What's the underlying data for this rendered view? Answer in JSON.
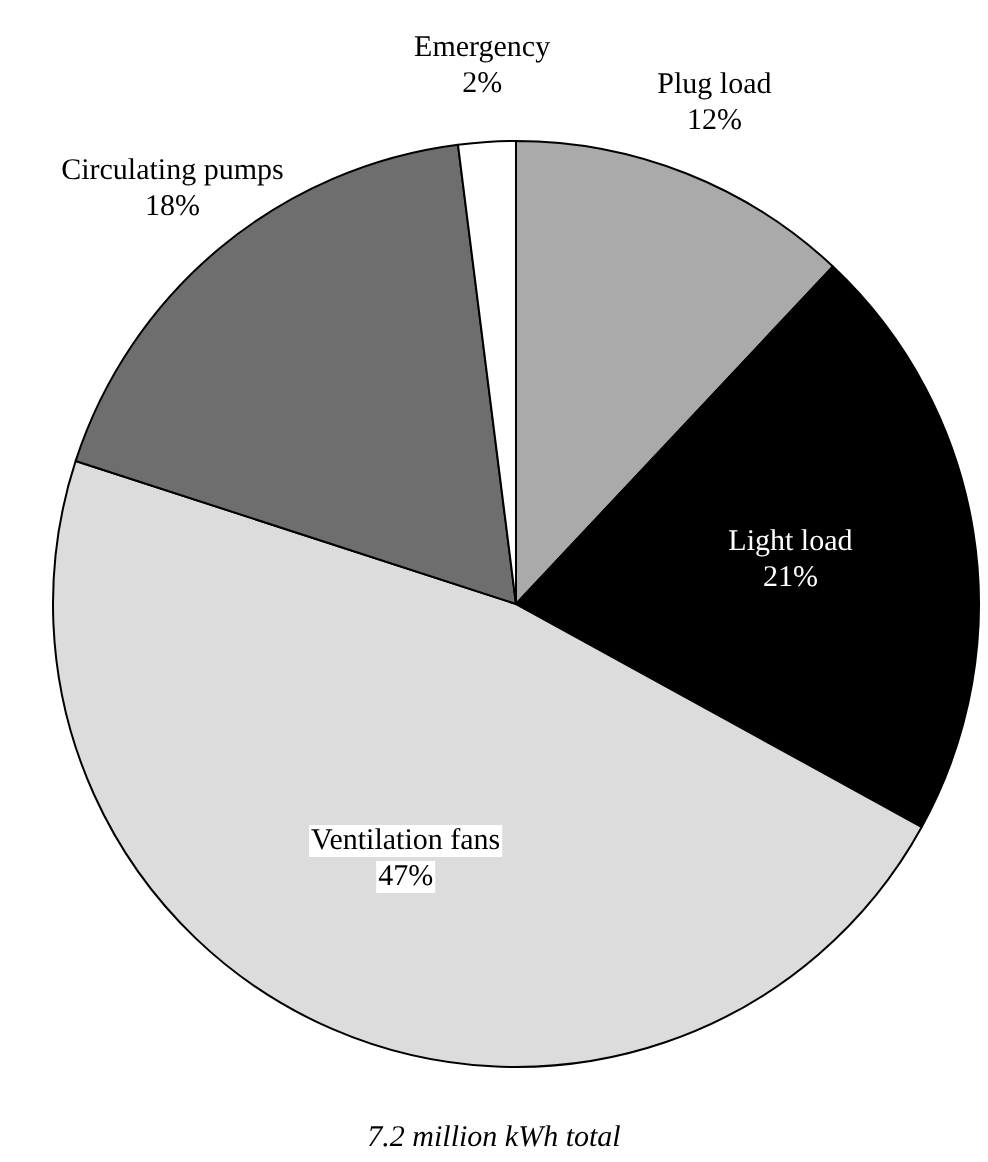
{
  "chart_data": {
    "type": "pie",
    "categories": [
      "Plug load",
      "Light load",
      "Ventilation fans",
      "Circulating pumps",
      "Emergency"
    ],
    "values": [
      12,
      21,
      47,
      18,
      2
    ],
    "colors": [
      "#aaaaaa",
      "#000000",
      "#dcdcdc",
      "#6e6e6e",
      "#ffffff"
    ],
    "value_labels": [
      "12%",
      "21%",
      "47%",
      "18%",
      "2%"
    ],
    "legend": false,
    "annotations": [
      "7.2 million kWh total"
    ]
  }
}
